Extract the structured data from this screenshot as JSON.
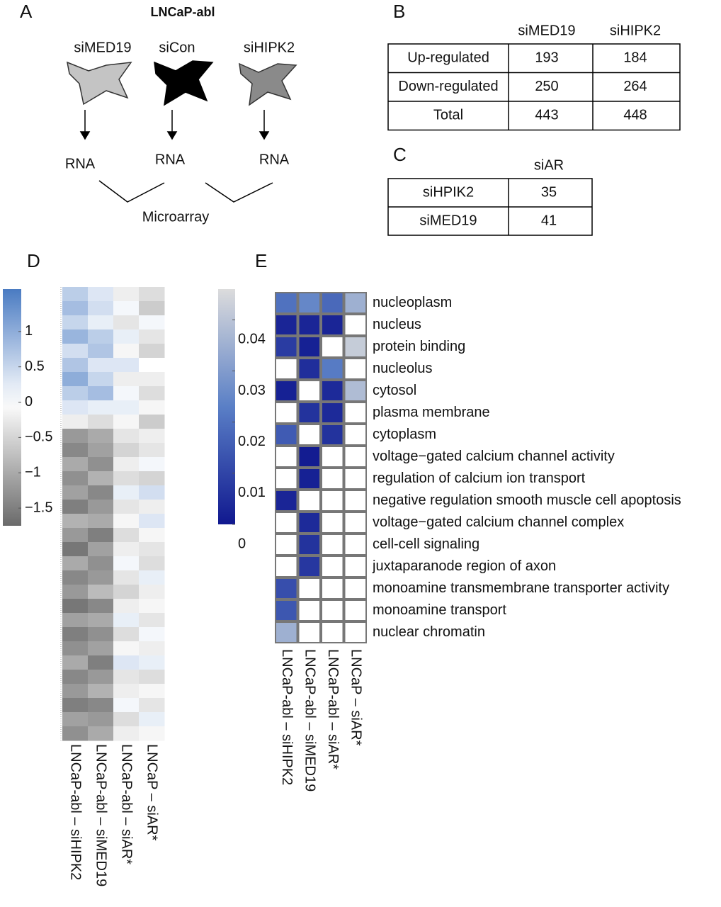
{
  "panel_a": {
    "label": "A",
    "title": "LNCaP-abl",
    "conditions": [
      "siMED19",
      "siCon",
      "siHIPK2"
    ],
    "outputs": [
      "RNA",
      "RNA",
      "RNA"
    ],
    "method": "Microarray"
  },
  "panel_b": {
    "label": "B",
    "columns": [
      "siMED19",
      "siHIPK2"
    ],
    "rows": [
      {
        "name": "Up-regulated",
        "values": [
          193,
          184
        ]
      },
      {
        "name": "Down-regulated",
        "values": [
          250,
          264
        ]
      },
      {
        "name": "Total",
        "values": [
          443,
          448
        ]
      }
    ]
  },
  "panel_c": {
    "label": "C",
    "columns": [
      "siAR"
    ],
    "rows": [
      {
        "name": "siHPIK2",
        "values": [
          35
        ]
      },
      {
        "name": "siMED19",
        "values": [
          41
        ]
      }
    ]
  },
  "panel_d": {
    "label": "D",
    "type": "heatmap",
    "columns": [
      "LNCaP-abl – siHIPK2",
      "LNCaP-abl – siMED19",
      "LNCaP-abl – siAR*",
      "LNCaP – siAR*"
    ],
    "colorbar_lim": [
      -1.75,
      1.6
    ],
    "colorbar_ticks": [
      1,
      0.5,
      0,
      {
        "value": -0.5,
        "label": "−0.5"
      },
      {
        "value": -1,
        "label": "−1"
      },
      {
        "value": -1.5,
        "label": "−1.5"
      }
    ],
    "values": [
      [
        0.6,
        0.3,
        -0.2,
        -0.4
      ],
      [
        0.8,
        0.4,
        0.1,
        -0.6
      ],
      [
        0.5,
        0.2,
        -0.3,
        0.1
      ],
      [
        0.9,
        0.6,
        0.2,
        -0.3
      ],
      [
        0.4,
        0.7,
        -0.1,
        -0.5
      ],
      [
        0.7,
        0.3,
        0.3,
        0.0
      ],
      [
        1.0,
        0.5,
        -0.2,
        -0.2
      ],
      [
        0.6,
        0.8,
        0.1,
        -0.4
      ],
      [
        0.3,
        0.2,
        0.2,
        -0.1
      ],
      [
        -0.2,
        -0.4,
        -0.1,
        -0.6
      ],
      [
        -1.2,
        -1.0,
        -0.3,
        -0.2
      ],
      [
        -1.4,
        -1.1,
        -0.5,
        -0.3
      ],
      [
        -1.0,
        -1.3,
        -0.2,
        0.1
      ],
      [
        -1.3,
        -0.9,
        -0.4,
        -0.5
      ],
      [
        -1.1,
        -1.4,
        0.2,
        0.4
      ],
      [
        -1.5,
        -1.2,
        -0.3,
        -0.2
      ],
      [
        -0.9,
        -1.0,
        -0.1,
        0.3
      ],
      [
        -1.2,
        -1.5,
        -0.4,
        -0.1
      ],
      [
        -1.6,
        -1.1,
        -0.2,
        -0.3
      ],
      [
        -1.0,
        -1.3,
        0.1,
        -0.4
      ],
      [
        -1.4,
        -1.2,
        -0.3,
        0.2
      ],
      [
        -1.2,
        -0.8,
        -0.5,
        -0.2
      ],
      [
        -1.6,
        -1.4,
        -0.2,
        -0.1
      ],
      [
        -1.1,
        -1.0,
        0.2,
        -0.3
      ],
      [
        -1.5,
        -1.3,
        -0.4,
        0.1
      ],
      [
        -1.3,
        -1.1,
        -0.1,
        -0.2
      ],
      [
        -1.0,
        -1.5,
        0.3,
        0.2
      ],
      [
        -1.4,
        -1.2,
        -0.3,
        -0.4
      ],
      [
        -1.2,
        -0.9,
        -0.2,
        -0.1
      ],
      [
        -1.5,
        -1.4,
        0.1,
        -0.3
      ],
      [
        -1.1,
        -1.2,
        -0.4,
        0.2
      ],
      [
        -1.3,
        -1.0,
        -0.2,
        -0.1
      ]
    ]
  },
  "panel_e": {
    "label": "E",
    "type": "heatmap",
    "columns": [
      "LNCaP-abl – siHIPK2",
      "LNCaP-abl – siMED19",
      "LNCaP-abl – siAR*",
      "LNCaP – siAR*"
    ],
    "colorbar_lim": [
      0,
      0.046
    ],
    "colorbar_ticks": [
      0.04,
      0.03,
      0.02,
      0.01,
      0
    ],
    "rows": [
      "nucleoplasm",
      "nucleus",
      "protein binding",
      "nucleolus",
      "cytosol",
      "plasma membrane",
      "cytoplasm",
      "voltage−gated calcium channel activity",
      "regulation of calcium ion transport",
      "negative regulation smooth muscle cell apoptosis",
      "voltage−gated calcium channel complex",
      "cell-cell signaling",
      "juxtaparanode region of axon",
      "monoamine transmembrane transporter activity",
      "monoamine transport",
      "nuclear chromatin"
    ],
    "values": [
      [
        0.02,
        0.025,
        0.018,
        0.035
      ],
      [
        0.003,
        0.003,
        0.003,
        null
      ],
      [
        0.008,
        0.002,
        null,
        0.042
      ],
      [
        null,
        0.005,
        0.022,
        null
      ],
      [
        0.002,
        null,
        0.004,
        0.038
      ],
      [
        null,
        0.006,
        0.004,
        null
      ],
      [
        0.015,
        null,
        0.006,
        null
      ],
      [
        null,
        0.001,
        null,
        null
      ],
      [
        null,
        0.002,
        null,
        null
      ],
      [
        0.003,
        null,
        null,
        null
      ],
      [
        null,
        0.004,
        null,
        null
      ],
      [
        null,
        0.006,
        null,
        null
      ],
      [
        null,
        0.007,
        null,
        null
      ],
      [
        0.012,
        null,
        null,
        null
      ],
      [
        0.014,
        null,
        null,
        null
      ],
      [
        0.035,
        null,
        null,
        null
      ]
    ]
  }
}
